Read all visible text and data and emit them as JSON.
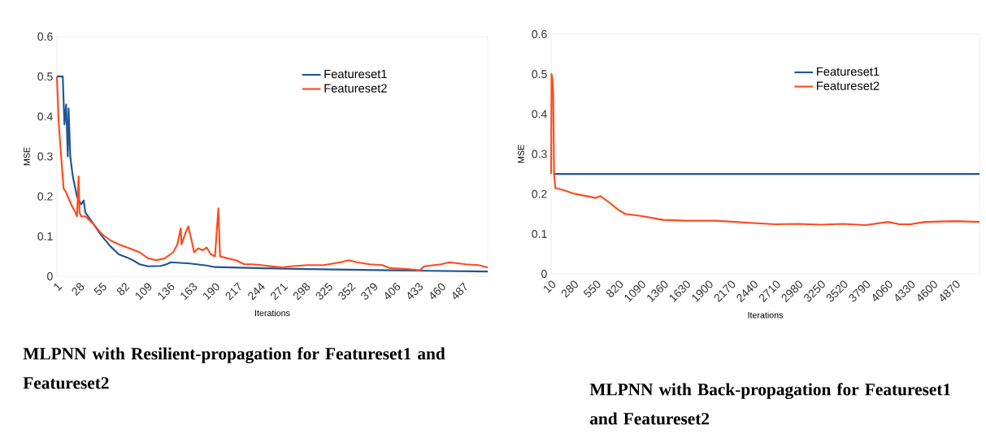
{
  "chart_data": [
    {
      "type": "line",
      "title": "MLPNN with Resilient-propagation for Featureset1 and Featureset2",
      "xlabel": "Iterations",
      "ylabel": "MSE",
      "xlim": [
        1,
        516
      ],
      "xticks": [
        1,
        28,
        55,
        82,
        109,
        136,
        163,
        190,
        217,
        244,
        271,
        298,
        325,
        352,
        379,
        406,
        433,
        460,
        487
      ],
      "ylim": [
        0,
        0.6
      ],
      "yticks": [
        0,
        0.1,
        0.2,
        0.3,
        0.4,
        0.5,
        0.6
      ],
      "legend": "top right",
      "series": [
        {
          "name": "Featureset1",
          "color": "#1f5596",
          "x": [
            1,
            8,
            10,
            12,
            14,
            15,
            17,
            20,
            25,
            30,
            33,
            35,
            45,
            55,
            65,
            75,
            85,
            92,
            100,
            110,
            125,
            132,
            137,
            160,
            180,
            190,
            250,
            300,
            400,
            516
          ],
          "values": [
            0.5,
            0.5,
            0.38,
            0.43,
            0.3,
            0.42,
            0.3,
            0.25,
            0.2,
            0.18,
            0.19,
            0.16,
            0.13,
            0.1,
            0.075,
            0.055,
            0.047,
            0.04,
            0.03,
            0.025,
            0.026,
            0.03,
            0.035,
            0.032,
            0.027,
            0.023,
            0.02,
            0.018,
            0.015,
            0.012
          ]
        },
        {
          "name": "Featureset2",
          "color": "#ff4a1a",
          "x": [
            1,
            3,
            5,
            9,
            12,
            18,
            23,
            25,
            27,
            28,
            30,
            35,
            45,
            55,
            65,
            75,
            90,
            100,
            110,
            120,
            130,
            140,
            145,
            149,
            150,
            155,
            158,
            162,
            165,
            170,
            175,
            180,
            185,
            190,
            194,
            196,
            205,
            215,
            225,
            235,
            245,
            270,
            280,
            300,
            320,
            340,
            350,
            360,
            375,
            390,
            400,
            420,
            435,
            440,
            460,
            470,
            490,
            505,
            516
          ],
          "values": [
            0.5,
            0.39,
            0.33,
            0.22,
            0.21,
            0.18,
            0.16,
            0.15,
            0.25,
            0.16,
            0.15,
            0.15,
            0.13,
            0.105,
            0.09,
            0.08,
            0.068,
            0.06,
            0.045,
            0.04,
            0.045,
            0.06,
            0.08,
            0.12,
            0.08,
            0.11,
            0.125,
            0.09,
            0.06,
            0.07,
            0.065,
            0.072,
            0.055,
            0.05,
            0.17,
            0.05,
            0.045,
            0.04,
            0.03,
            0.03,
            0.028,
            0.022,
            0.025,
            0.028,
            0.028,
            0.035,
            0.04,
            0.035,
            0.03,
            0.028,
            0.02,
            0.018,
            0.015,
            0.025,
            0.03,
            0.035,
            0.03,
            0.028,
            0.022
          ]
        }
      ]
    },
    {
      "type": "line",
      "title": "MLPNN with Back-propagation for Featureset1 and Featureset2",
      "xlabel": "Iterations",
      "ylabel": "MSE",
      "xlim": [
        10,
        5160
      ],
      "xticks": [
        10,
        280,
        550,
        820,
        1090,
        1360,
        1630,
        1900,
        2170,
        2440,
        2710,
        2980,
        3250,
        3520,
        3790,
        4060,
        4330,
        4600,
        4870
      ],
      "ylim": [
        0,
        0.6
      ],
      "yticks": [
        0,
        0.1,
        0.2,
        0.3,
        0.4,
        0.5,
        0.6
      ],
      "legend": "top right",
      "series": [
        {
          "name": "Featureset1",
          "color": "#1f5596",
          "x": [
            45,
            5160
          ],
          "values": [
            0.25,
            0.25
          ]
        },
        {
          "name": "Featureset2",
          "color": "#ff4a1a",
          "x": [
            10,
            15,
            25,
            35,
            45,
            50,
            60,
            150,
            300,
            550,
            600,
            700,
            820,
            900,
            1090,
            1360,
            1630,
            2000,
            2440,
            2710,
            2980,
            3250,
            3520,
            3790,
            4060,
            4200,
            4330,
            4500,
            4870,
            5160
          ],
          "values": [
            0.25,
            0.5,
            0.49,
            0.45,
            0.25,
            0.24,
            0.215,
            0.21,
            0.2,
            0.19,
            0.195,
            0.18,
            0.16,
            0.15,
            0.145,
            0.135,
            0.133,
            0.133,
            0.127,
            0.124,
            0.125,
            0.123,
            0.125,
            0.122,
            0.13,
            0.124,
            0.124,
            0.13,
            0.132,
            0.13
          ]
        }
      ]
    }
  ]
}
